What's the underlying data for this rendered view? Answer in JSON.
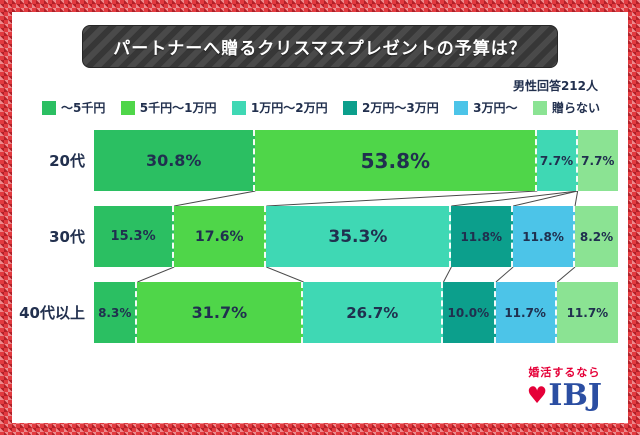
{
  "frame": {
    "border_color": "#e23a3f"
  },
  "header": {
    "title": "パートナーへ贈るクリスマスプレゼントの予算は？",
    "respondents": "男性回答212人"
  },
  "chart_data": {
    "type": "bar",
    "orientation": "horizontal-stacked",
    "unit": "%",
    "xlim": [
      0,
      100
    ],
    "categories": [
      "20代",
      "30代",
      "40代以上"
    ],
    "series": [
      {
        "name": "～5千円",
        "color": "#2bbf62",
        "values": [
          30.8,
          15.3,
          8.3
        ]
      },
      {
        "name": "5千円～1万円",
        "color": "#4fd649",
        "values": [
          53.8,
          17.6,
          31.7
        ]
      },
      {
        "name": "1万円～2万円",
        "color": "#3fd8b4",
        "values": [
          7.7,
          35.3,
          26.7
        ]
      },
      {
        "name": "2万円～3万円",
        "color": "#0c9f8c",
        "values": [
          0,
          11.8,
          10.0
        ]
      },
      {
        "name": "3万円～",
        "color": "#4cc4e8",
        "values": [
          0,
          11.8,
          11.7
        ]
      },
      {
        "name": "贈らない",
        "color": "#8be393",
        "values": [
          7.7,
          8.2,
          11.7
        ]
      }
    ],
    "legend_position": "top",
    "value_label_format": "{v}%",
    "label_color": "#20304f",
    "connector_color": "#4a4a4a"
  },
  "footer": {
    "tagline": "婚活するなら",
    "tagline_color": "#e50038",
    "logo_heart": "♥",
    "logo_heart_color": "#e50038",
    "logo_text": "IBJ",
    "logo_color": "#2b4ea2"
  }
}
